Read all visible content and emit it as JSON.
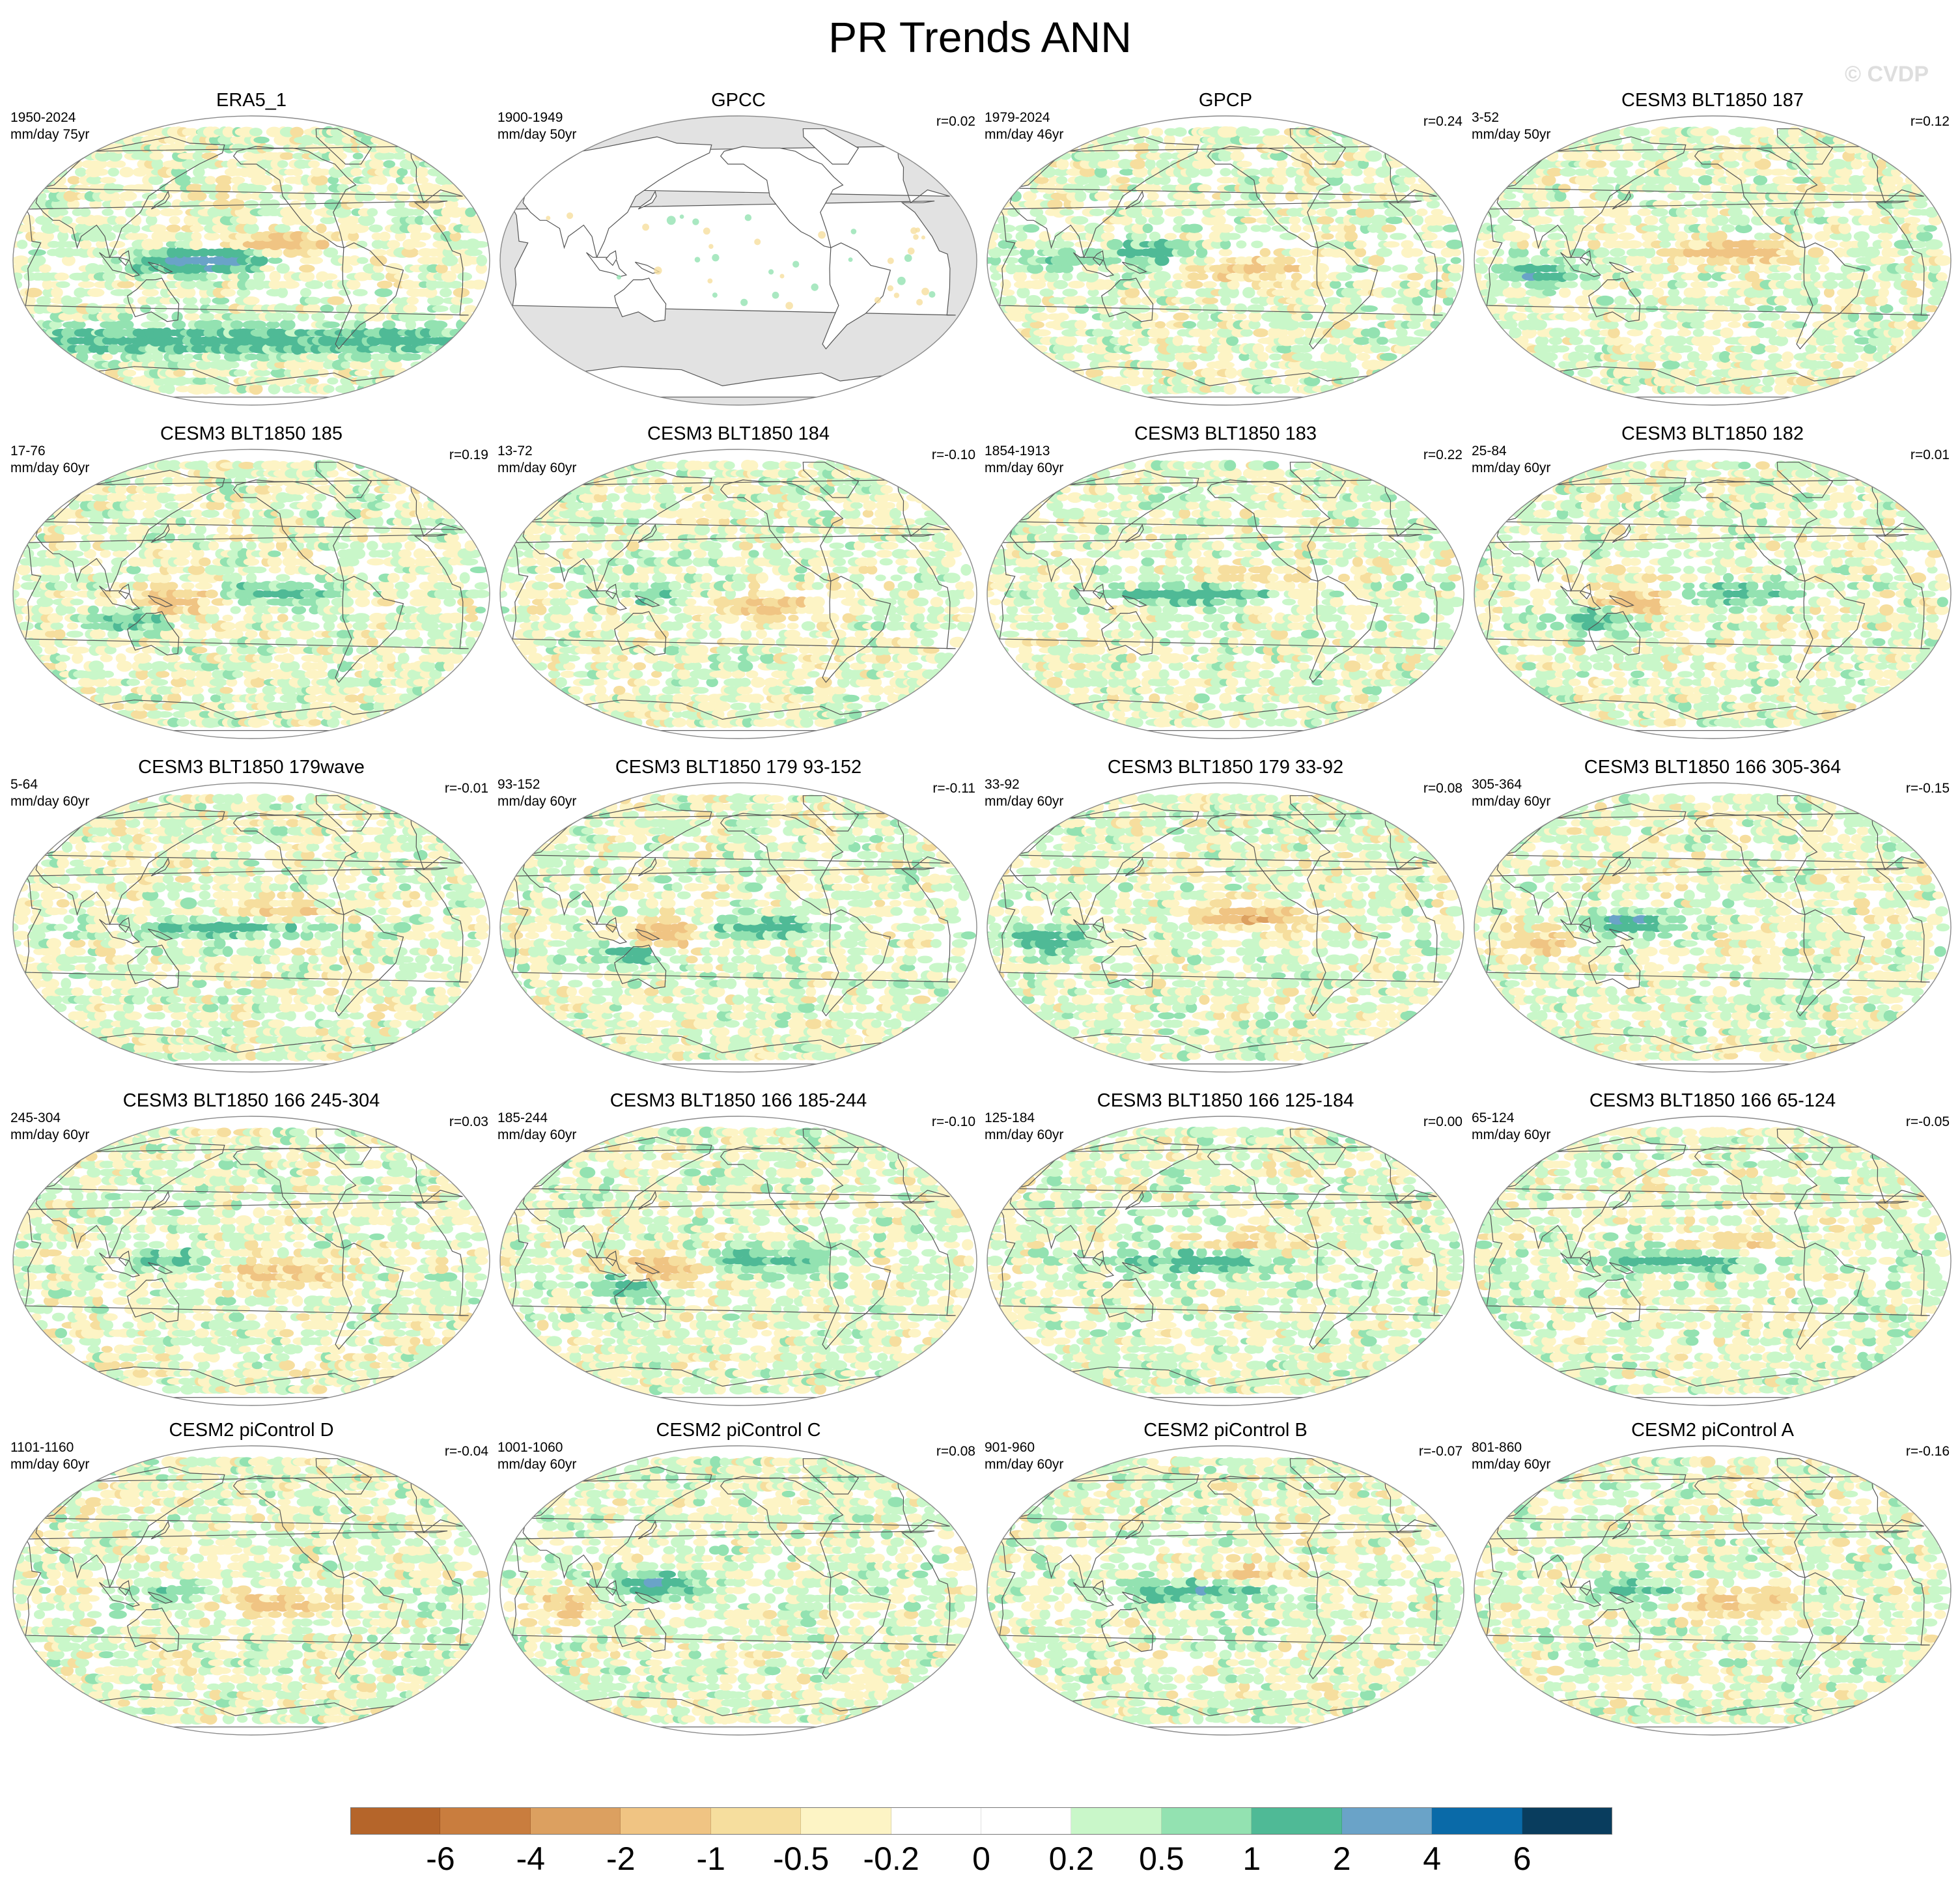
{
  "figure": {
    "title": "PR Trends ANN",
    "copyright": "© CVDP"
  },
  "panels": [
    {
      "name": "ERA5_1",
      "years": "1950-2024",
      "units": "mm/day 75yr",
      "r": "",
      "gray": false,
      "seed": 3,
      "pattern": "obs"
    },
    {
      "name": "GPCC",
      "years": "1900-1949",
      "units": "mm/day 50yr",
      "r": "r=0.02",
      "gray": true,
      "seed": 7,
      "pattern": "land"
    },
    {
      "name": "GPCP",
      "years": "1979-2024",
      "units": "mm/day 46yr",
      "r": "r=0.24",
      "gray": false,
      "seed": 11,
      "pattern": "gpcp"
    },
    {
      "name": "CESM3 BLT1850 187",
      "years": "3-52",
      "units": "mm/day 50yr",
      "r": "r=0.12",
      "gray": false,
      "seed": 13,
      "pattern": "dry-east"
    },
    {
      "name": "CESM3 BLT1850 185",
      "years": "17-76",
      "units": "mm/day 60yr",
      "r": "r=0.19",
      "gray": false,
      "seed": 17,
      "pattern": "dry-pac"
    },
    {
      "name": "CESM3 BLT1850 184",
      "years": "13-72",
      "units": "mm/day 60yr",
      "r": "r=-0.10",
      "gray": false,
      "seed": 19,
      "pattern": "mixed"
    },
    {
      "name": "CESM3 BLT1850 183",
      "years": "1854-1913",
      "units": "mm/day 60yr",
      "r": "r=0.22",
      "gray": false,
      "seed": 23,
      "pattern": "wet-eq"
    },
    {
      "name": "CESM3 BLT1850 182",
      "years": "25-84",
      "units": "mm/day 60yr",
      "r": "r=0.01",
      "gray": false,
      "seed": 29,
      "pattern": "dry-pac"
    },
    {
      "name": "CESM3 BLT1850 179wave",
      "years": "5-64",
      "units": "mm/day 60yr",
      "r": "r=-0.01",
      "gray": false,
      "seed": 31,
      "pattern": "wet-eq"
    },
    {
      "name": "CESM3 BLT1850 179 93-152",
      "years": "93-152",
      "units": "mm/day 60yr",
      "r": "r=-0.11",
      "gray": false,
      "seed": 37,
      "pattern": "dry-pac"
    },
    {
      "name": "CESM3 BLT1850 179 33-92",
      "years": "33-92",
      "units": "mm/day 60yr",
      "r": "r=0.08",
      "gray": false,
      "seed": 41,
      "pattern": "dry-east"
    },
    {
      "name": "CESM3 BLT1850 166 305-364",
      "years": "305-364",
      "units": "mm/day 60yr",
      "r": "r=-0.15",
      "gray": false,
      "seed": 43,
      "pattern": "wet-west"
    },
    {
      "name": "CESM3 BLT1850 166 245-304",
      "years": "245-304",
      "units": "mm/day 60yr",
      "r": "r=0.03",
      "gray": false,
      "seed": 47,
      "pattern": "mixed"
    },
    {
      "name": "CESM3 BLT1850 166 185-244",
      "years": "185-244",
      "units": "mm/day 60yr",
      "r": "r=-0.10",
      "gray": false,
      "seed": 53,
      "pattern": "dry-pac"
    },
    {
      "name": "CESM3 BLT1850 166 125-184",
      "years": "125-184",
      "units": "mm/day 60yr",
      "r": "r=0.00",
      "gray": false,
      "seed": 59,
      "pattern": "wet-eq"
    },
    {
      "name": "CESM3 BLT1850 166 65-124",
      "years": "65-124",
      "units": "mm/day 60yr",
      "r": "r=-0.05",
      "gray": false,
      "seed": 61,
      "pattern": "wet-eq"
    },
    {
      "name": "CESM2 piControl D",
      "years": "1101-1160",
      "units": "mm/day 60yr",
      "r": "r=-0.04",
      "gray": false,
      "seed": 67,
      "pattern": "mixed"
    },
    {
      "name": "CESM2 piControl C",
      "years": "1001-1060",
      "units": "mm/day 60yr",
      "r": "r=0.08",
      "gray": false,
      "seed": 71,
      "pattern": "wet-west"
    },
    {
      "name": "CESM2 piControl B",
      "years": "901-960",
      "units": "mm/day 60yr",
      "r": "r=-0.07",
      "gray": false,
      "seed": 73,
      "pattern": "wet-eq"
    },
    {
      "name": "CESM2 piControl A",
      "years": "801-860",
      "units": "mm/day 60yr",
      "r": "r=-0.16",
      "gray": false,
      "seed": 79,
      "pattern": "mixed"
    }
  ],
  "colorbar": {
    "colors": [
      "#b5652a",
      "#c97d3e",
      "#dca060",
      "#f0c483",
      "#f6de9e",
      "#fdf4c5",
      "#ffffff",
      "#ffffff",
      "#c9f7c9",
      "#93e2b1",
      "#4fba96",
      "#6aa3c8",
      "#0a6aa8",
      "#093d5e"
    ],
    "labels": [
      "-6",
      "-4",
      "-2",
      "-1",
      "-0.5",
      "-0.2",
      "0",
      "0.2",
      "0.5",
      "1",
      "2",
      "4",
      "6"
    ]
  }
}
